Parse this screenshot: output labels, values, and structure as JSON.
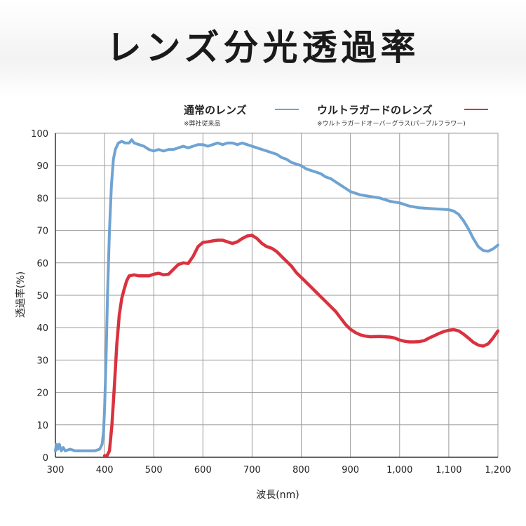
{
  "title": "レンズ分光透過率",
  "legend": [
    {
      "label": "通常のレンズ",
      "note": "※弊社従来品",
      "color": "#6fa3d2"
    },
    {
      "label": "ウルトラガードのレンズ",
      "note": "※ウルトラガードオーバーグラス(パープルフラワー)",
      "color": "#d9323f"
    }
  ],
  "chart_data": {
    "type": "line",
    "xlabel": "波長(nm)",
    "ylabel": "透過率(%)",
    "xlim": [
      300,
      1200
    ],
    "ylim": [
      0,
      100
    ],
    "x_ticks": [
      300,
      400,
      500,
      600,
      700,
      800,
      900,
      1000,
      1100,
      1200
    ],
    "x_tick_labels": [
      "300",
      "400",
      "500",
      "600",
      "700",
      "800",
      "900",
      "1,000",
      "1,100",
      "1,200"
    ],
    "y_ticks": [
      0,
      10,
      20,
      30,
      40,
      50,
      60,
      70,
      80,
      90,
      100
    ],
    "y_tick_labels": [
      "0",
      "10",
      "20",
      "30",
      "40",
      "50",
      "60",
      "70",
      "80",
      "90",
      "100"
    ],
    "grid": true,
    "legend_position": "top",
    "series": [
      {
        "name": "通常のレンズ",
        "color": "#6fa3d2",
        "points": [
          [
            300,
            2
          ],
          [
            302,
            4
          ],
          [
            305,
            2.5
          ],
          [
            308,
            4
          ],
          [
            312,
            2
          ],
          [
            316,
            3
          ],
          [
            320,
            2
          ],
          [
            330,
            2.5
          ],
          [
            340,
            2
          ],
          [
            360,
            2
          ],
          [
            380,
            2
          ],
          [
            390,
            2.5
          ],
          [
            395,
            4
          ],
          [
            398,
            8
          ],
          [
            400,
            15
          ],
          [
            403,
            30
          ],
          [
            406,
            50
          ],
          [
            410,
            70
          ],
          [
            414,
            84
          ],
          [
            418,
            92
          ],
          [
            422,
            95
          ],
          [
            428,
            97
          ],
          [
            435,
            97.5
          ],
          [
            442,
            97
          ],
          [
            450,
            97
          ],
          [
            455,
            98
          ],
          [
            460,
            97
          ],
          [
            470,
            96.5
          ],
          [
            480,
            96
          ],
          [
            490,
            95
          ],
          [
            500,
            94.5
          ],
          [
            510,
            95
          ],
          [
            520,
            94.5
          ],
          [
            530,
            95
          ],
          [
            540,
            95
          ],
          [
            550,
            95.5
          ],
          [
            560,
            96
          ],
          [
            570,
            95.5
          ],
          [
            580,
            96
          ],
          [
            590,
            96.5
          ],
          [
            600,
            96.5
          ],
          [
            610,
            96
          ],
          [
            620,
            96.5
          ],
          [
            630,
            97
          ],
          [
            640,
            96.5
          ],
          [
            650,
            97
          ],
          [
            660,
            97
          ],
          [
            670,
            96.5
          ],
          [
            680,
            97
          ],
          [
            690,
            96.5
          ],
          [
            700,
            96
          ],
          [
            710,
            95.5
          ],
          [
            720,
            95
          ],
          [
            730,
            94.5
          ],
          [
            740,
            94
          ],
          [
            750,
            93.5
          ],
          [
            760,
            92.5
          ],
          [
            770,
            92
          ],
          [
            780,
            91
          ],
          [
            790,
            90.5
          ],
          [
            800,
            90
          ],
          [
            810,
            89
          ],
          [
            820,
            88.5
          ],
          [
            830,
            88
          ],
          [
            840,
            87.5
          ],
          [
            850,
            86.5
          ],
          [
            860,
            86
          ],
          [
            870,
            85
          ],
          [
            880,
            84
          ],
          [
            890,
            83
          ],
          [
            900,
            82
          ],
          [
            920,
            81
          ],
          [
            940,
            80.5
          ],
          [
            960,
            80
          ],
          [
            980,
            79
          ],
          [
            1000,
            78.5
          ],
          [
            1020,
            77.5
          ],
          [
            1040,
            77
          ],
          [
            1060,
            76.8
          ],
          [
            1080,
            76.6
          ],
          [
            1100,
            76.4
          ],
          [
            1110,
            76
          ],
          [
            1120,
            75
          ],
          [
            1130,
            73
          ],
          [
            1140,
            70.5
          ],
          [
            1150,
            67.5
          ],
          [
            1160,
            65
          ],
          [
            1170,
            63.8
          ],
          [
            1180,
            63.6
          ],
          [
            1190,
            64.3
          ],
          [
            1200,
            65.5
          ]
        ]
      },
      {
        "name": "ウルトラガードのレンズ",
        "color": "#d9323f",
        "points": [
          [
            400,
            0.5
          ],
          [
            405,
            0.5
          ],
          [
            410,
            2
          ],
          [
            415,
            10
          ],
          [
            420,
            22
          ],
          [
            425,
            35
          ],
          [
            430,
            44
          ],
          [
            435,
            49
          ],
          [
            440,
            52
          ],
          [
            445,
            54.5
          ],
          [
            450,
            56
          ],
          [
            460,
            56.3
          ],
          [
            470,
            56
          ],
          [
            480,
            56
          ],
          [
            490,
            56
          ],
          [
            500,
            56.5
          ],
          [
            510,
            56.8
          ],
          [
            520,
            56.3
          ],
          [
            530,
            56.5
          ],
          [
            540,
            58
          ],
          [
            550,
            59.5
          ],
          [
            560,
            60
          ],
          [
            570,
            59.8
          ],
          [
            580,
            62
          ],
          [
            590,
            65
          ],
          [
            600,
            66.3
          ],
          [
            610,
            66.5
          ],
          [
            620,
            66.8
          ],
          [
            630,
            67
          ],
          [
            640,
            67
          ],
          [
            650,
            66.5
          ],
          [
            660,
            66
          ],
          [
            670,
            66.5
          ],
          [
            680,
            67.5
          ],
          [
            690,
            68.3
          ],
          [
            700,
            68.5
          ],
          [
            710,
            67.5
          ],
          [
            720,
            66
          ],
          [
            730,
            65
          ],
          [
            740,
            64.5
          ],
          [
            750,
            63.5
          ],
          [
            760,
            62
          ],
          [
            770,
            60.5
          ],
          [
            780,
            59
          ],
          [
            790,
            57
          ],
          [
            800,
            55.5
          ],
          [
            810,
            54
          ],
          [
            820,
            52.5
          ],
          [
            830,
            51
          ],
          [
            840,
            49.5
          ],
          [
            850,
            48
          ],
          [
            860,
            46.5
          ],
          [
            870,
            45
          ],
          [
            880,
            43
          ],
          [
            890,
            41
          ],
          [
            900,
            39.5
          ],
          [
            910,
            38.5
          ],
          [
            920,
            37.8
          ],
          [
            930,
            37.4
          ],
          [
            940,
            37.2
          ],
          [
            960,
            37.3
          ],
          [
            980,
            37.1
          ],
          [
            990,
            36.8
          ],
          [
            1000,
            36.2
          ],
          [
            1010,
            35.8
          ],
          [
            1020,
            35.6
          ],
          [
            1030,
            35.6
          ],
          [
            1040,
            35.7
          ],
          [
            1050,
            36
          ],
          [
            1060,
            36.8
          ],
          [
            1070,
            37.5
          ],
          [
            1080,
            38.2
          ],
          [
            1090,
            38.8
          ],
          [
            1100,
            39.2
          ],
          [
            1110,
            39.4
          ],
          [
            1120,
            39
          ],
          [
            1130,
            38
          ],
          [
            1140,
            36.8
          ],
          [
            1150,
            35.5
          ],
          [
            1160,
            34.6
          ],
          [
            1170,
            34.3
          ],
          [
            1180,
            35
          ],
          [
            1190,
            36.8
          ],
          [
            1200,
            39
          ]
        ]
      }
    ]
  }
}
